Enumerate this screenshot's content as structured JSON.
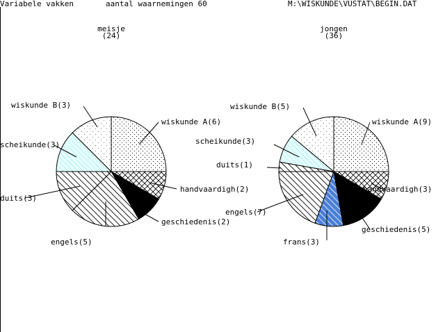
{
  "header": {
    "left": "Variabele vakken",
    "middle": "aantal waarnemingen 60",
    "right": "M:\\WISKUNDE\\VUSTAT\\BEGIN.DAT"
  },
  "chart_data": [
    {
      "type": "pie",
      "title": "meisje",
      "subtitle": "(24)",
      "total": 24,
      "slices": [
        {
          "name": "wiskunde A",
          "value": 6,
          "label": "wiskunde A(6)",
          "pattern": "dots",
          "color": "#ffffff"
        },
        {
          "name": "handvaardigh",
          "value": 2,
          "label": "handvaardigh(2)",
          "pattern": "crosshatch",
          "color": "#ffffff"
        },
        {
          "name": "geschiedenis",
          "value": 2,
          "label": "geschiedenis(2)",
          "pattern": "solid",
          "color": "#000000"
        },
        {
          "name": "engels",
          "value": 5,
          "label": "engels(5)",
          "pattern": "hatch",
          "color": "#ffffff"
        },
        {
          "name": "duits",
          "value": 3,
          "label": "duits(3)",
          "pattern": "hatch",
          "color": "#ffffff"
        },
        {
          "name": "scheikunde",
          "value": 3,
          "label": "scheikunde(3)",
          "pattern": "cyanhatch",
          "color": "#c8f4f4"
        },
        {
          "name": "wiskunde B",
          "value": 3,
          "label": "wiskunde B(3)",
          "pattern": "sparsedots",
          "color": "#ffffff"
        }
      ]
    },
    {
      "type": "pie",
      "title": "jongen",
      "subtitle": "(36)",
      "total": 36,
      "slices": [
        {
          "name": "wiskunde A",
          "value": 9,
          "label": "wiskunde A(9)",
          "pattern": "dots",
          "color": "#ffffff"
        },
        {
          "name": "handvaardigh",
          "value": 3,
          "label": "handvaardigh(3)",
          "pattern": "crosshatch",
          "color": "#ffffff"
        },
        {
          "name": "geschiedenis",
          "value": 5,
          "label": "geschiedenis(5)",
          "pattern": "solid",
          "color": "#000000"
        },
        {
          "name": "frans",
          "value": 3,
          "label": "frans(3)",
          "pattern": "bluehatch",
          "color": "#4a7fd4"
        },
        {
          "name": "engels",
          "value": 7,
          "label": "engels(7)",
          "pattern": "hatch",
          "color": "#ffffff"
        },
        {
          "name": "duits",
          "value": 1,
          "label": "duits(1)",
          "pattern": "hatch",
          "color": "#ffffff"
        },
        {
          "name": "scheikunde",
          "value": 3,
          "label": "scheikunde(3)",
          "pattern": "cyanhatch",
          "color": "#c8f4f4"
        },
        {
          "name": "wiskunde B",
          "value": 5,
          "label": "wiskunde B(5)",
          "pattern": "sparsedots",
          "color": "#ffffff"
        }
      ]
    }
  ]
}
